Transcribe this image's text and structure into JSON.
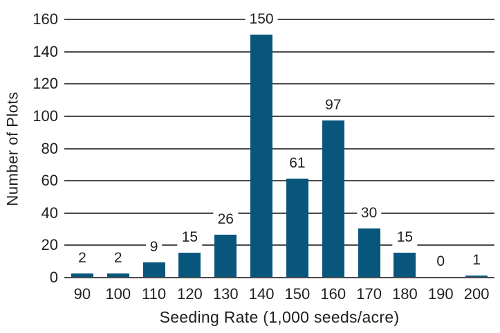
{
  "chart_data": {
    "type": "bar",
    "title": "",
    "xlabel": "Seeding Rate (1,000 seeds/acre)",
    "ylabel": "Number of Plots",
    "categories": [
      "90",
      "100",
      "110",
      "120",
      "130",
      "140",
      "150",
      "160",
      "170",
      "180",
      "190",
      "200"
    ],
    "values": [
      2,
      2,
      9,
      15,
      26,
      150,
      61,
      97,
      30,
      15,
      0,
      1
    ],
    "value_labels": [
      "2",
      "2",
      "9",
      "15",
      "26",
      "150",
      "61",
      "97",
      "30",
      "15",
      "0",
      "1"
    ],
    "yticks": [
      0,
      20,
      40,
      60,
      80,
      100,
      120,
      140,
      160
    ],
    "ylim": [
      0,
      160
    ],
    "grid": true,
    "legend": "none",
    "bar_color": "#09567C",
    "gridline_color": "#4A4A4B",
    "axis_color": "#4A4A4B",
    "text_color": "#1F1F1F",
    "background": "#FFFFFF"
  }
}
